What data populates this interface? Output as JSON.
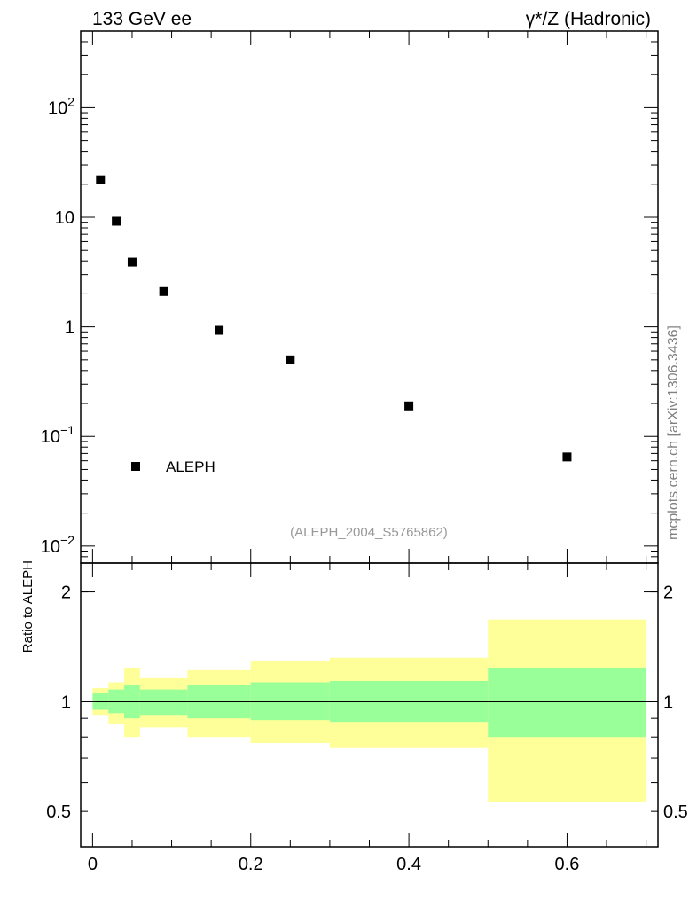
{
  "header": {
    "left_title": "133 GeV ee",
    "right_title": "γ*/Z (Hadronic)"
  },
  "side_label": "mcplots.cern.ch [arXiv:1306.3436]",
  "watermark": "(ALEPH_2004_S5765862)",
  "colors": {
    "marker": "#000000",
    "band_inner": "#99ff99",
    "band_outer": "#ffff99",
    "watermark": "#999999"
  },
  "chart_data": [
    {
      "type": "scatter",
      "scale_y": "log",
      "legend": {
        "entries": [
          "ALEPH"
        ],
        "placement": "bottom-left"
      },
      "series": [
        {
          "name": "ALEPH",
          "x": [
            0.01,
            0.03,
            0.05,
            0.09,
            0.16,
            0.25,
            0.4,
            0.6
          ],
          "y": [
            22,
            9.2,
            3.9,
            2.1,
            0.93,
            0.5,
            0.19,
            0.065
          ]
        }
      ],
      "xlim": [
        -0.015,
        0.715
      ],
      "ylim": [
        0.007,
        500
      ],
      "yticks": [
        {
          "value": 0.01,
          "mantissa": "10",
          "exp": "−2"
        },
        {
          "value": 0.1,
          "mantissa": "10",
          "exp": "−1"
        },
        {
          "value": 1,
          "mantissa": "1",
          "exp": ""
        },
        {
          "value": 10,
          "mantissa": "10",
          "exp": ""
        },
        {
          "value": 100,
          "mantissa": "10",
          "exp": "2"
        }
      ]
    },
    {
      "type": "area",
      "ylabel": "Ratio to ALEPH",
      "scale_y": "log",
      "ylim": [
        0.4,
        2.4
      ],
      "xlim": [
        -0.015,
        0.715
      ],
      "reference_line": 1,
      "bins": [
        {
          "x0": 0.0,
          "x1": 0.02,
          "inner": [
            0.95,
            1.06
          ],
          "outer": [
            0.92,
            1.09
          ]
        },
        {
          "x0": 0.02,
          "x1": 0.04,
          "inner": [
            0.93,
            1.08
          ],
          "outer": [
            0.87,
            1.13
          ]
        },
        {
          "x0": 0.04,
          "x1": 0.06,
          "inner": [
            0.9,
            1.11
          ],
          "outer": [
            0.8,
            1.24
          ]
        },
        {
          "x0": 0.06,
          "x1": 0.12,
          "inner": [
            0.92,
            1.08
          ],
          "outer": [
            0.85,
            1.16
          ]
        },
        {
          "x0": 0.12,
          "x1": 0.2,
          "inner": [
            0.9,
            1.11
          ],
          "outer": [
            0.8,
            1.22
          ]
        },
        {
          "x0": 0.2,
          "x1": 0.3,
          "inner": [
            0.89,
            1.13
          ],
          "outer": [
            0.77,
            1.29
          ]
        },
        {
          "x0": 0.3,
          "x1": 0.5,
          "inner": [
            0.88,
            1.14
          ],
          "outer": [
            0.75,
            1.32
          ]
        },
        {
          "x0": 0.5,
          "x1": 0.7,
          "inner": [
            0.8,
            1.24
          ],
          "outer": [
            0.53,
            1.68
          ]
        }
      ],
      "yticks": [
        {
          "value": 0.5,
          "label": "0.5"
        },
        {
          "value": 1,
          "label": "1"
        },
        {
          "value": 2,
          "label": "2"
        }
      ],
      "xticks": [
        {
          "value": 0,
          "label": "0"
        },
        {
          "value": 0.2,
          "label": "0.2"
        },
        {
          "value": 0.4,
          "label": "0.4"
        },
        {
          "value": 0.6,
          "label": "0.6"
        }
      ]
    }
  ]
}
